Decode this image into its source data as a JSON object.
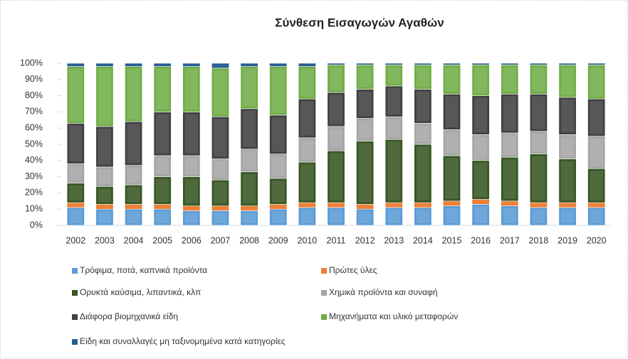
{
  "chart_data": {
    "type": "stacked_bar",
    "title": "Σύνθεση Εισαγωγών Αγαθών",
    "categories": [
      "2002",
      "2003",
      "2004",
      "2005",
      "2006",
      "2007",
      "2008",
      "2009",
      "2010",
      "2011",
      "2012",
      "2013",
      "2014",
      "2015",
      "2016",
      "2017",
      "2018",
      "2019",
      "2020"
    ],
    "series": [
      {
        "name": "Τρόφιμα, ποτά, καπνικά προϊόντα",
        "color": "#5b9bd5",
        "values": [
          11,
          10,
          10,
          10,
          9,
          9,
          9,
          10,
          11,
          11,
          10,
          11,
          11,
          12,
          13,
          12,
          11,
          11,
          11
        ]
      },
      {
        "name": "Πρώτες ύλες",
        "color": "#ed7d31",
        "values": [
          3,
          3,
          3,
          3,
          3,
          3,
          3,
          3,
          3,
          3,
          3,
          3,
          3,
          3,
          3,
          3,
          3,
          3,
          3
        ]
      },
      {
        "name": "Ορυκτά καύσιμα, λιπαντικά, κλπ",
        "color": "#375623",
        "values": [
          12,
          11,
          12,
          17,
          18,
          16,
          21,
          16,
          25,
          32,
          39,
          39,
          36,
          28,
          24,
          27,
          30,
          27,
          21
        ]
      },
      {
        "name": "Χημικά προϊόντα και συναφή",
        "color": "#a5a5a5",
        "values": [
          12,
          12,
          12,
          13,
          13,
          13,
          14,
          15,
          15,
          15,
          14,
          14,
          13,
          16,
          16,
          15,
          14,
          15,
          20
        ]
      },
      {
        "name": "Διάφορα βιομηχανικά είδη",
        "color": "#404040",
        "values": [
          25,
          25,
          27,
          27,
          27,
          26,
          25,
          24,
          24,
          21,
          18,
          19,
          21,
          22,
          24,
          24,
          23,
          23,
          23
        ]
      },
      {
        "name": "Μηχανήματα και υλικό μεταφορών",
        "color": "#70ad47",
        "values": [
          35,
          37,
          34,
          28,
          28,
          30,
          26,
          30,
          20,
          17,
          15,
          13,
          15,
          18,
          19,
          18,
          18,
          20,
          21
        ]
      },
      {
        "name": "Είδη και συναλλαγές μη ταξινομημένα κατά κατηγορίες",
        "color": "#255e91",
        "values": [
          2,
          2,
          2,
          2,
          2,
          3,
          2,
          2,
          2,
          1,
          1,
          1,
          1,
          1,
          1,
          1,
          1,
          1,
          1
        ]
      }
    ],
    "ylim": [
      0,
      100
    ],
    "yticks": [
      {
        "value": 0,
        "label": "0%"
      },
      {
        "value": 10,
        "label": "10%"
      },
      {
        "value": 20,
        "label": "20%"
      },
      {
        "value": 30,
        "label": "30%"
      },
      {
        "value": 40,
        "label": "40%"
      },
      {
        "value": 50,
        "label": "50%"
      },
      {
        "value": 60,
        "label": "60%"
      },
      {
        "value": 70,
        "label": "70%"
      },
      {
        "value": 80,
        "label": "80%"
      },
      {
        "value": 90,
        "label": "90%"
      },
      {
        "value": 100,
        "label": "100%"
      }
    ],
    "grid": false
  }
}
